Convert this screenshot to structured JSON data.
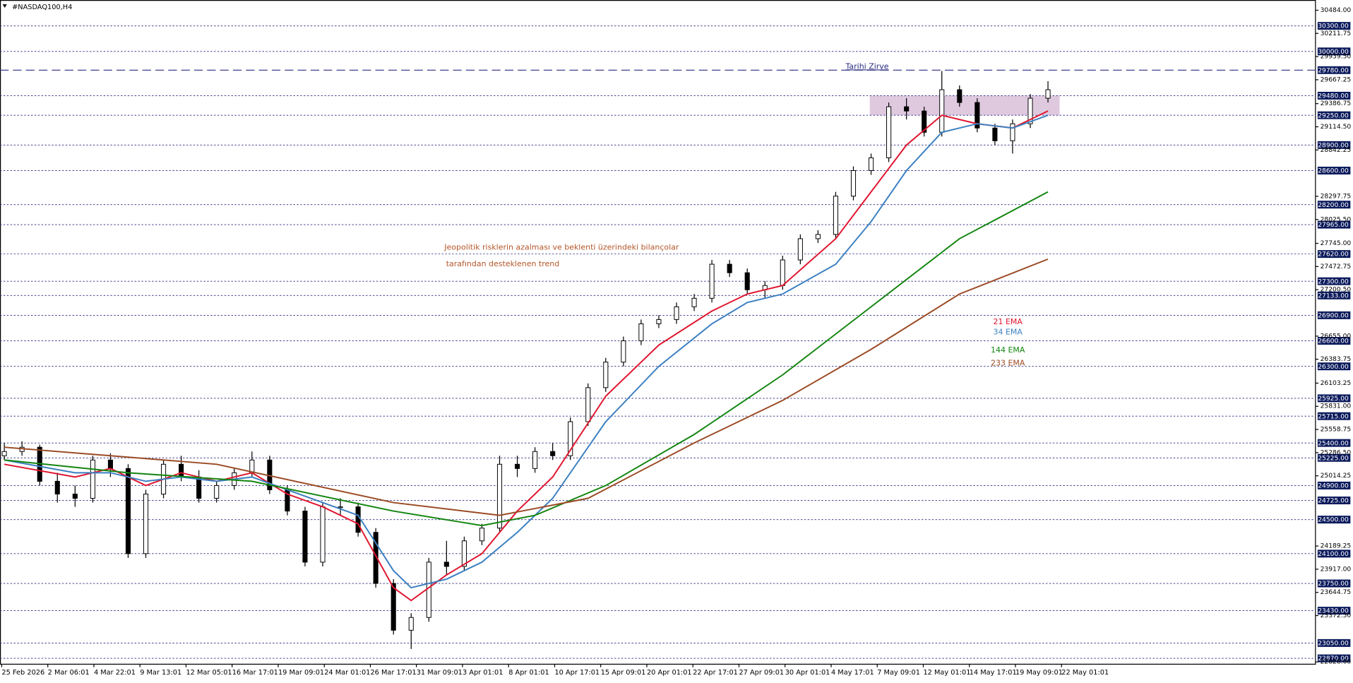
{
  "chart_data": {
    "type": "candlestick",
    "title": "#NASDAQ100,H4",
    "categories": [
      "25 Feb 2026",
      "2 Mar 06:01",
      "4 Mar 22:01",
      "9 Mar 13:01",
      "12 Mar 05:01",
      "16 Mar 17:01",
      "19 Mar 09:01",
      "24 Mar 01:01",
      "26 Mar 17:01",
      "31 Mar 09:01",
      "3 Apr 01:01",
      "8 Apr 01:01",
      "10 Apr 17:01",
      "15 Apr 09:01",
      "20 Apr 01:01",
      "22 Apr 17:01",
      "27 Apr 09:01",
      "30 Apr 01:01",
      "4 May 17:01",
      "7 May 09:01",
      "12 May 01:01",
      "14 May 17:01",
      "19 May 09:01",
      "22 May 01:01"
    ],
    "ylim": [
      22796,
      30604
    ],
    "yticks": [
      {
        "value": 30484,
        "label": "30484.00"
      },
      {
        "value": 30211.75,
        "label": "30211.75"
      },
      {
        "value": 29939.5,
        "label": "29939.50"
      },
      {
        "value": 29667.25,
        "label": "29667.25"
      },
      {
        "value": 29386.75,
        "label": "29386.75"
      },
      {
        "value": 29114.5,
        "label": "29114.50"
      },
      {
        "value": 28842.25,
        "label": "28842.25"
      },
      {
        "value": 28297.75,
        "label": "28297.75"
      },
      {
        "value": 28025.5,
        "label": "28025.50"
      },
      {
        "value": 27745,
        "label": "27745.00"
      },
      {
        "value": 27472.75,
        "label": "27472.75"
      },
      {
        "value": 27200.5,
        "label": "27200.50"
      },
      {
        "value": 26655,
        "label": "26655.00"
      },
      {
        "value": 26383.75,
        "label": "26383.75"
      },
      {
        "value": 26103.25,
        "label": "26103.25"
      },
      {
        "value": 25831,
        "label": "25831.00"
      },
      {
        "value": 25558.75,
        "label": "25558.75"
      },
      {
        "value": 25286.5,
        "label": "25286.50"
      },
      {
        "value": 25014.25,
        "label": "25014.25"
      },
      {
        "value": 24189.25,
        "label": "24189.25"
      },
      {
        "value": 23917,
        "label": "23917.00"
      },
      {
        "value": 23644.75,
        "label": "23644.75"
      },
      {
        "value": 23372.5,
        "label": "23372.50"
      },
      {
        "value": 22828,
        "label": "22828.00"
      }
    ],
    "levels": [
      {
        "value": 30300,
        "label": "30300.00"
      },
      {
        "value": 30000,
        "label": "30000.00"
      },
      {
        "value": 29780,
        "label": "29780.00"
      },
      {
        "value": 29480,
        "label": "29480.00"
      },
      {
        "value": 29250,
        "label": "29250.00"
      },
      {
        "value": 28900,
        "label": "28900.00"
      },
      {
        "value": 28600,
        "label": "28600.00"
      },
      {
        "value": 28200,
        "label": "28200.00"
      },
      {
        "value": 27965,
        "label": "27965.00"
      },
      {
        "value": 27620,
        "label": "27620.00"
      },
      {
        "value": 27300,
        "label": "27300.00"
      },
      {
        "value": 27133,
        "label": "27133.00"
      },
      {
        "value": 26900,
        "label": "26900.00"
      },
      {
        "value": 26600,
        "label": "26600.00"
      },
      {
        "value": 26300,
        "label": "26300.00"
      },
      {
        "value": 25925,
        "label": "25925.00"
      },
      {
        "value": 25715,
        "label": "25715.00"
      },
      {
        "value": 25400,
        "label": "25400.00"
      },
      {
        "value": 25225,
        "label": "25225.00"
      },
      {
        "value": 24900,
        "label": "24900.00"
      },
      {
        "value": 24725,
        "label": "24725.00"
      },
      {
        "value": 24500,
        "label": "24500.00"
      },
      {
        "value": 24100,
        "label": "24100.00"
      },
      {
        "value": 23750,
        "label": "23750.00"
      },
      {
        "value": 23430,
        "label": "23430.00"
      },
      {
        "value": 23050,
        "label": "23050.00"
      },
      {
        "value": 22870,
        "label": "22870.00"
      }
    ],
    "candles": {
      "color": "#000000",
      "open": [
        25250,
        25300,
        25350,
        24950,
        24800,
        24750,
        25200,
        25100,
        24100,
        24800,
        25150,
        25000,
        24750,
        24900,
        25050,
        25200,
        24850,
        24600,
        24000,
        24650,
        24650,
        24350,
        23750,
        23200,
        23350,
        24000,
        23950,
        24250,
        24400,
        25150,
        25100,
        25300,
        25250,
        25650,
        26050,
        26350,
        26600,
        26800,
        26850,
        27000,
        27100,
        27500,
        27400,
        27200,
        27250,
        27550,
        27800,
        27850,
        28300,
        28600,
        28750,
        29350,
        29300,
        29050,
        29550,
        29400,
        29100,
        28950,
        29150,
        29450
      ],
      "high": [
        25400,
        25420,
        25380,
        25050,
        24900,
        25250,
        25280,
        25150,
        24850,
        25200,
        25250,
        25080,
        24950,
        25100,
        25300,
        25250,
        24900,
        24650,
        24700,
        24750,
        24700,
        24400,
        23800,
        23400,
        24050,
        24250,
        24300,
        24450,
        25250,
        25250,
        25350,
        25400,
        25700,
        26100,
        26400,
        26650,
        26850,
        26900,
        27050,
        27150,
        27550,
        27550,
        27450,
        27300,
        27600,
        27850,
        27900,
        28350,
        28650,
        28800,
        29400,
        29450,
        29350,
        29770,
        29600,
        29450,
        29150,
        29200,
        29500,
        29650
      ],
      "low": [
        25200,
        25250,
        24900,
        24700,
        24650,
        24700,
        25000,
        24050,
        24050,
        24750,
        24950,
        24700,
        24700,
        24850,
        25000,
        24800,
        24550,
        23950,
        23950,
        24550,
        24300,
        23700,
        23150,
        22980,
        23300,
        23850,
        23900,
        24200,
        24350,
        25000,
        25050,
        25200,
        25200,
        25600,
        26000,
        26300,
        26550,
        26750,
        26800,
        26950,
        27050,
        27350,
        27150,
        27100,
        27200,
        27500,
        27750,
        27800,
        28250,
        28550,
        28700,
        29200,
        29000,
        29000,
        29350,
        29050,
        28900,
        28800,
        29100,
        29400
      ],
      "close": [
        25300,
        25350,
        24950,
        24800,
        24750,
        25200,
        25100,
        24100,
        24800,
        25150,
        25000,
        24750,
        24900,
        25050,
        25200,
        24850,
        24600,
        24000,
        24650,
        24650,
        24350,
        23750,
        23200,
        23350,
        24000,
        23950,
        24250,
        24400,
        25150,
        25100,
        25300,
        25250,
        25650,
        26050,
        26350,
        26600,
        26800,
        26850,
        27000,
        27100,
        27500,
        27400,
        27200,
        27250,
        27550,
        27800,
        27850,
        28300,
        28600,
        28750,
        29350,
        29300,
        29050,
        29550,
        29400,
        29100,
        28950,
        29150,
        29450,
        29550
      ]
    },
    "series": [
      {
        "name": "21 EMA",
        "color": "#e0142e",
        "x": [
          0,
          4,
          6,
          8,
          10,
          12,
          14,
          16,
          18,
          20,
          22,
          23,
          25,
          27,
          29,
          31,
          34,
          37,
          40,
          42,
          44,
          47,
          49,
          51,
          53,
          55,
          57,
          59
        ],
        "values": [
          25150,
          25000,
          25100,
          24900,
          25050,
          24950,
          25050,
          24800,
          24650,
          24450,
          23700,
          23550,
          23850,
          24100,
          24600,
          25000,
          25950,
          26550,
          26950,
          27150,
          27250,
          27800,
          28350,
          28900,
          29250,
          29150,
          29100,
          29300
        ]
      },
      {
        "name": "34 EMA",
        "color": "#3a7fc1",
        "x": [
          0,
          4,
          6,
          8,
          10,
          12,
          14,
          16,
          18,
          20,
          22,
          23,
          25,
          27,
          29,
          31,
          34,
          37,
          40,
          42,
          44,
          47,
          49,
          51,
          53,
          55,
          57,
          59
        ],
        "values": [
          25200,
          25050,
          25050,
          24950,
          25000,
          24950,
          25000,
          24850,
          24700,
          24550,
          23900,
          23700,
          23800,
          24000,
          24350,
          24750,
          25650,
          26300,
          26800,
          27050,
          27150,
          27500,
          28000,
          28600,
          29050,
          29150,
          29100,
          29250
        ]
      },
      {
        "name": "144 EMA",
        "color": "#12850f",
        "x": [
          0,
          7,
          14,
          22,
          27,
          30,
          34,
          39,
          44,
          49,
          54,
          59
        ],
        "values": [
          25200,
          25050,
          24950,
          24600,
          24430,
          24550,
          24900,
          25500,
          26200,
          27000,
          27800,
          28350
        ]
      },
      {
        "name": "233 EMA",
        "color": "#9b4a24",
        "x": [
          0,
          12,
          22,
          28,
          33,
          39,
          44,
          49,
          54,
          59
        ],
        "values": [
          25350,
          25150,
          24700,
          24550,
          24750,
          25400,
          25900,
          26500,
          27150,
          27560
        ]
      }
    ],
    "peak_label": "Tarihi Zirve",
    "peak_value": 29780,
    "zone": [
      29250,
      29480
    ],
    "annotation": [
      "Jeopolitik risklerin azalması ve beklenti üzerindeki bilançolar",
      "tarafından desteklenen trend"
    ]
  }
}
